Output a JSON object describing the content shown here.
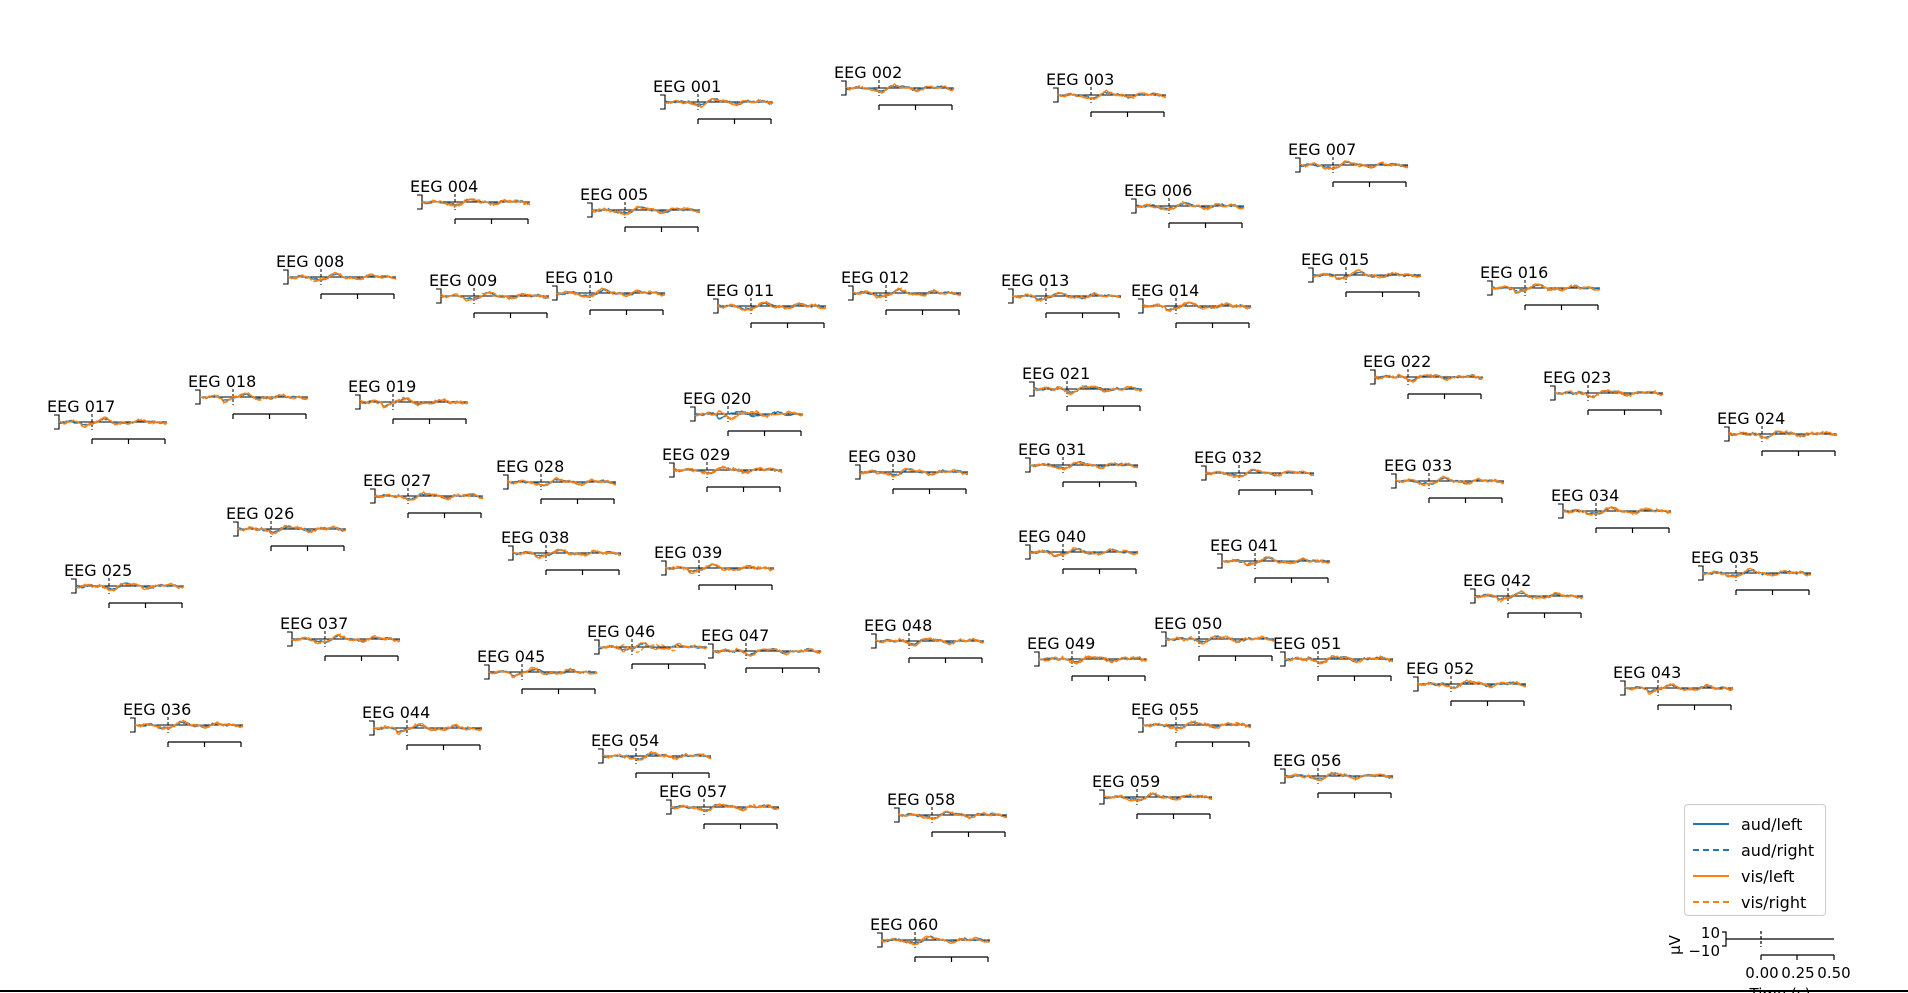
{
  "chart_data": {
    "type": "line",
    "title": "",
    "channels": [
      {
        "name": "EEG 001"
      },
      {
        "name": "EEG 002"
      },
      {
        "name": "EEG 003"
      },
      {
        "name": "EEG 004"
      },
      {
        "name": "EEG 005"
      },
      {
        "name": "EEG 006"
      },
      {
        "name": "EEG 007"
      },
      {
        "name": "EEG 008"
      },
      {
        "name": "EEG 009"
      },
      {
        "name": "EEG 010"
      },
      {
        "name": "EEG 011"
      },
      {
        "name": "EEG 012"
      },
      {
        "name": "EEG 013"
      },
      {
        "name": "EEG 014"
      },
      {
        "name": "EEG 015"
      },
      {
        "name": "EEG 016"
      },
      {
        "name": "EEG 017"
      },
      {
        "name": "EEG 018"
      },
      {
        "name": "EEG 019"
      },
      {
        "name": "EEG 020"
      },
      {
        "name": "EEG 021"
      },
      {
        "name": "EEG 022"
      },
      {
        "name": "EEG 023"
      },
      {
        "name": "EEG 024"
      },
      {
        "name": "EEG 025"
      },
      {
        "name": "EEG 026"
      },
      {
        "name": "EEG 027"
      },
      {
        "name": "EEG 028"
      },
      {
        "name": "EEG 029"
      },
      {
        "name": "EEG 030"
      },
      {
        "name": "EEG 031"
      },
      {
        "name": "EEG 032"
      },
      {
        "name": "EEG 033"
      },
      {
        "name": "EEG 034"
      },
      {
        "name": "EEG 035"
      },
      {
        "name": "EEG 036"
      },
      {
        "name": "EEG 037"
      },
      {
        "name": "EEG 038"
      },
      {
        "name": "EEG 039"
      },
      {
        "name": "EEG 040"
      },
      {
        "name": "EEG 041"
      },
      {
        "name": "EEG 042"
      },
      {
        "name": "EEG 043"
      },
      {
        "name": "EEG 044"
      },
      {
        "name": "EEG 045"
      },
      {
        "name": "EEG 046"
      },
      {
        "name": "EEG 047"
      },
      {
        "name": "EEG 048"
      },
      {
        "name": "EEG 049"
      },
      {
        "name": "EEG 050"
      },
      {
        "name": "EEG 051"
      },
      {
        "name": "EEG 052"
      },
      {
        "name": "EEG 054"
      },
      {
        "name": "EEG 055"
      },
      {
        "name": "EEG 056"
      },
      {
        "name": "EEG 057"
      },
      {
        "name": "EEG 058"
      },
      {
        "name": "EEG 059"
      },
      {
        "name": "EEG 060"
      }
    ],
    "series": [
      {
        "name": "aud/left",
        "color": "#1f77b4",
        "style": "solid"
      },
      {
        "name": "aud/right",
        "color": "#1f77b4",
        "style": "dashed"
      },
      {
        "name": "vis/left",
        "color": "#ff7f0e",
        "style": "solid"
      },
      {
        "name": "vis/right",
        "color": "#ff7f0e",
        "style": "dashed"
      }
    ],
    "xlim": [
      -0.1,
      0.5
    ],
    "ylim": [
      -10,
      10
    ],
    "legend": "bottom-right"
  },
  "scale_axes": {
    "y_unit": "µV",
    "y_ticks": [
      "10",
      "−10"
    ],
    "x_ticks": [
      "0.00",
      "0.25",
      "0.50"
    ],
    "x_label": "Time (s)"
  }
}
